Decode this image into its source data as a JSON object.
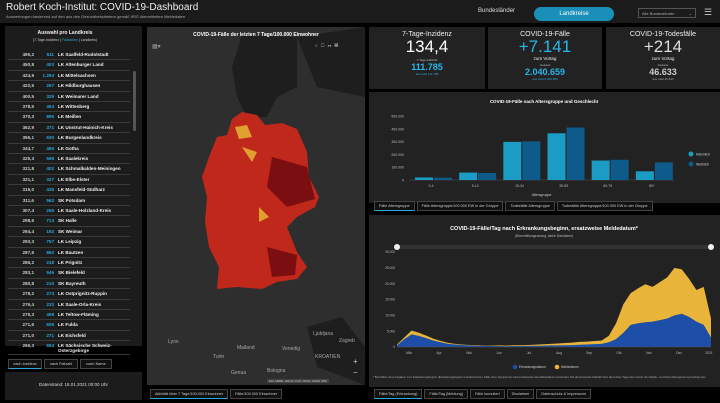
{
  "header": {
    "title": "Robert Koch-Institut: COVID-19-Dashboard",
    "subtitle": "Auswertungen basierend auf den aus den Gesundheitsämtern gemäß IfSG übermittelten Meldedaten",
    "tab_bundeslaender": "Bundesländer",
    "tab_landkreise": "Landkreise",
    "select_value": "Alle Bundesländer"
  },
  "left": {
    "title": "Auswahl pro Landkreis",
    "sub_a": "(7-Tage-Inzidenz | ",
    "sub_b": "Fallzahlen",
    "sub_c": " | Landkreis)",
    "rows": [
      [
        "495,2",
        "511",
        "LK Saalfeld-Rudolstadt"
      ],
      [
        "450,8",
        "403",
        "LK Altenburger Land"
      ],
      [
        "424,9",
        "1.293",
        "LK Mittelsachsen"
      ],
      [
        "422,5",
        "267",
        "LK Hildburghausen"
      ],
      [
        "400,5",
        "329",
        "LK Weimarer Land"
      ],
      [
        "378,5",
        "463",
        "LK Wittenberg"
      ],
      [
        "370,3",
        "895",
        "LK Meißen"
      ],
      [
        "362,9",
        "371",
        "LK Unstrut-Hainich-Kreis"
      ],
      [
        "355,1",
        "630",
        "LK Burgenlandkreis"
      ],
      [
        "344,7",
        "465",
        "LK Gotha"
      ],
      [
        "325,3",
        "598",
        "LK Saalekreis"
      ],
      [
        "321,8",
        "402",
        "LK Schmalkalden-Meiningen"
      ],
      [
        "321,1",
        "327",
        "LK Elbe-Elster"
      ],
      [
        "315,0",
        "435",
        "LK Mansfeld-Südharz"
      ],
      [
        "311,6",
        "562",
        "SK Potsdam"
      ],
      [
        "307,4",
        "255",
        "LK Saale-Holzland-Kreis"
      ],
      [
        "298,6",
        "713",
        "SK Halle"
      ],
      [
        "294,4",
        "192",
        "SK Weimar"
      ],
      [
        "293,3",
        "757",
        "LK Leipzig"
      ],
      [
        "287,6",
        "862",
        "LK Bautzen"
      ],
      [
        "286,2",
        "218",
        "LK Prignitz"
      ],
      [
        "283,1",
        "946",
        "SK Bielefeld"
      ],
      [
        "280,8",
        "210",
        "SK Bayreuth"
      ],
      [
        "278,2",
        "273",
        "LK Ostprignitz-Ruppin"
      ],
      [
        "276,4",
        "232",
        "LK Saale-Orla-Kreis"
      ],
      [
        "275,3",
        "468",
        "LK Teltow-Fläming"
      ],
      [
        "271,6",
        "606",
        "LK Fulda"
      ],
      [
        "271,0",
        "271",
        "LK Eichsfeld"
      ],
      [
        "266,3",
        "654",
        "LK Sächsische Schweiz-Osterzgebirge"
      ]
    ],
    "sort_buttons": [
      "nach Inzidenz",
      "nach Fallzahl",
      "nach Name"
    ],
    "datenstand": "Datenstand: 18.01.2021 00:00 Uhr"
  },
  "map": {
    "title": "COVID-19-Fälle der letzten 7 Tage/100.000 Einwohner",
    "tabs": [
      "Aktivität über 7 Tage/100.000 Einwohner",
      "Fälle/100.000 Einwohner"
    ],
    "places": [
      "Lyon",
      "Mailand",
      "Turin",
      "Genua",
      "Bologna",
      "Venedig",
      "Zagreb",
      "Ljubljana",
      "KROATIEN"
    ],
    "attribution": "Esri, HERE, Garmin, FAO, NOAA, USGS | RKI"
  },
  "kpi": {
    "inzidenz": {
      "title": "7-Tage-Inzidenz",
      "value": "134,4",
      "sub_label": "7-Tage-Fallzahl",
      "sub_value": "111.785",
      "tiny": "aus total 111.785"
    },
    "faelle": {
      "title": "COVID-19-Fälle",
      "value": "+7.141",
      "label": "zum Vortag",
      "sub_label": "Gesamt",
      "sub_value": "2.040.659",
      "tiny": "aus total 2.040.659"
    },
    "tod": {
      "title": "COVID-19-Todesfälle",
      "value": "+214",
      "label": "zum Vortag",
      "sub_label": "Gesamt",
      "sub_value": "46.633",
      "tiny": "aus total 46.633"
    }
  },
  "colors": {
    "accent": "#29a8d9",
    "male": "#1a9cc4",
    "female": "#0e5a8a",
    "erk": "#1d4fa8",
    "meld": "#e8b43a",
    "map_red": "#c0281c"
  },
  "chart_data": [
    {
      "type": "bar",
      "title": "COVID-19-Fälle nach Altersgruppe und Geschlecht",
      "xlabel": "Altersgruppe",
      "ylabel": "",
      "ylim": [
        0,
        500000
      ],
      "yticks": [
        "0",
        "100.000",
        "200.000",
        "300.000",
        "400.000",
        "500.000"
      ],
      "categories": [
        "0-4",
        "5-14",
        "15-34",
        "35-59",
        "60-79",
        "80+"
      ],
      "series": [
        {
          "name": "Männlich",
          "values": [
            20000,
            58000,
            298000,
            365000,
            152000,
            68000
          ]
        },
        {
          "name": "Weiblich",
          "values": [
            18000,
            55000,
            302000,
            410000,
            158000,
            138000
          ]
        }
      ],
      "legend": "right",
      "tabs": [
        "Fälle Altersgruppe",
        "Fälle Altersgruppe/100.000 EW in der Gruppe",
        "Todesfälle Altersgruppe",
        "Todesfälle Altersgruppe/100.000 EW in der Gruppe"
      ]
    },
    {
      "type": "area",
      "stacked": true,
      "title": "COVID-19-Fälle/Tag nach Erkrankungsbeginn, ersatzweise Meldedatum*",
      "subtitle": "(Übermittlungsverzug, siehe Disclaimer)",
      "ylim": [
        0,
        30000
      ],
      "yticks": [
        "0",
        "5.000",
        "10.000",
        "15.000",
        "20.000",
        "25.000",
        "30.000"
      ],
      "xticks": [
        "Mär",
        "Apr",
        "Mai",
        "Jun",
        "Jul",
        "Aug",
        "Sep",
        "Okt",
        "Nov",
        "Dez",
        "2021"
      ],
      "series": [
        {
          "name": "Erkrankungsdatum",
          "values": [
            500,
            2500,
            4000,
            3500,
            2800,
            2000,
            1500,
            1000,
            800,
            600,
            500,
            400,
            350,
            300,
            300,
            250,
            300,
            300,
            350,
            400,
            450,
            500,
            500,
            550,
            600,
            700,
            800,
            900,
            1000,
            1500,
            2500,
            4500,
            7000,
            7500,
            7800,
            8000,
            8500,
            9000,
            10000,
            10500,
            9500,
            8000,
            7000,
            3000
          ]
        },
        {
          "name": "Meldedatum",
          "values": [
            300,
            500,
            1200,
            1000,
            800,
            600,
            400,
            300,
            200,
            150,
            150,
            150,
            100,
            150,
            200,
            200,
            250,
            250,
            300,
            350,
            400,
            500,
            600,
            700,
            800,
            900,
            900,
            1000,
            1000,
            2000,
            5000,
            9000,
            10000,
            11000,
            12000,
            11000,
            12000,
            13000,
            15000,
            14000,
            12000,
            10000,
            12000,
            6000
          ]
        }
      ],
      "legend": "bottom",
      "footnote": "* Bei Fällen ohne Angaben zum Erkrankungsbeginn (Erkrankungsbeginn unbekannt bzw. Fälle ohne Symptome) wird ersatzweise das Meldedatum verwendet. Die abnehmende Fallzahl über die letzten Tage kann durch den Melde- und Übermittlungsverzug bedingt sein.",
      "tabs": [
        "Fälle/Tag (Erkrankung)",
        "Fälle/Tag (Meldung)",
        "Fälle kumuliert",
        "Disclaimer",
        "Datenschutz & Impressum"
      ]
    }
  ]
}
